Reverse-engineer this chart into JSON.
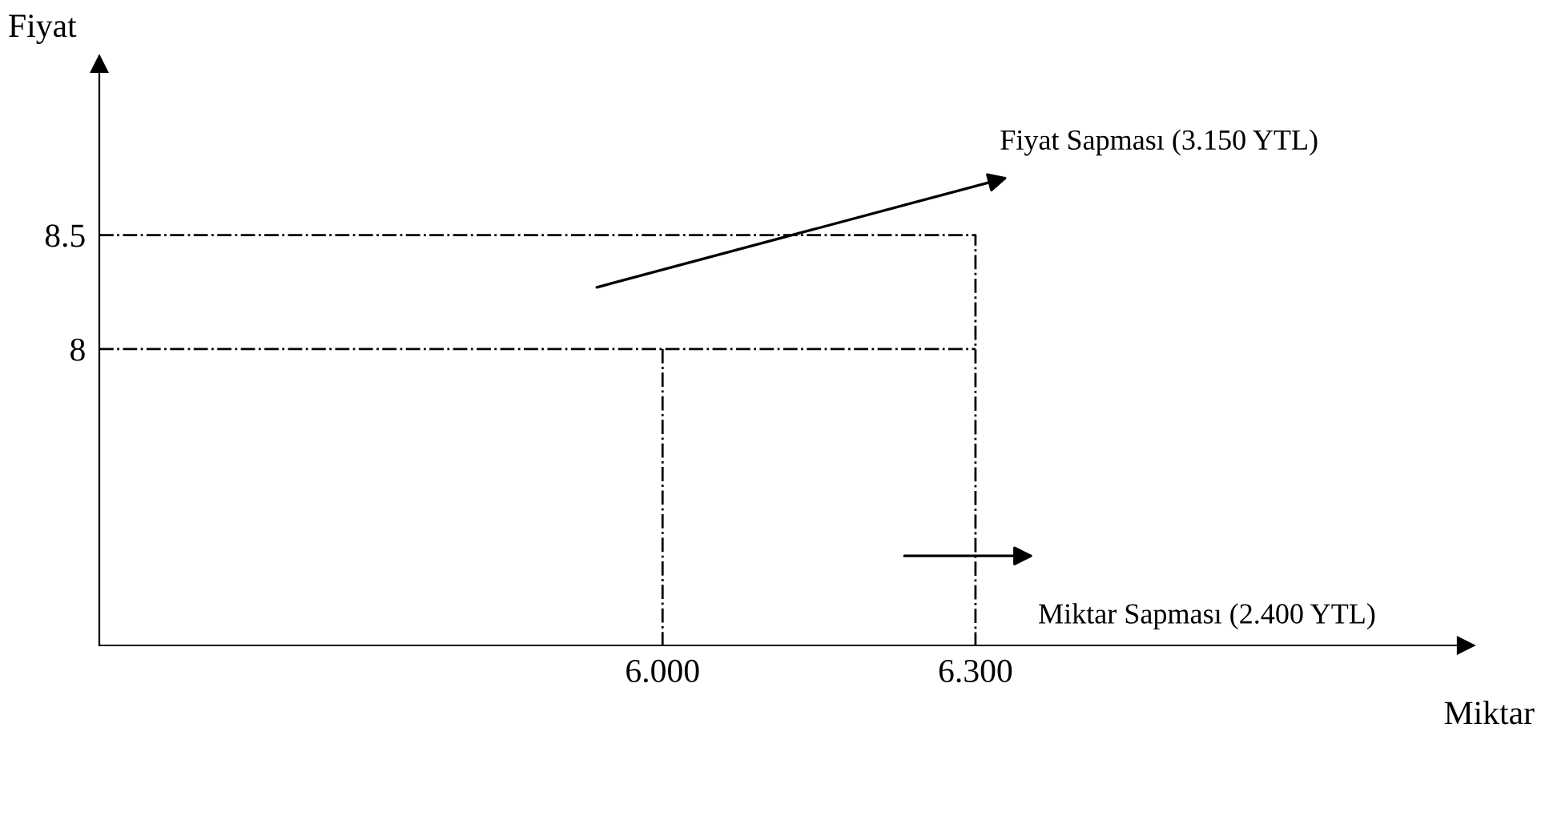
{
  "chart_data": {
    "type": "line",
    "xlabel": "Miktar",
    "ylabel": "Fiyat",
    "xlim": [
      5.46,
      6.77
    ],
    "ylim": [
      6.7,
      9.25
    ],
    "xticks": [
      {
        "value": 6.0,
        "label": "6.000"
      },
      {
        "value": 6.3,
        "label": "6.300"
      }
    ],
    "yticks": [
      8,
      8.5
    ],
    "line_style": "dashdot",
    "grid": false,
    "legend": false,
    "marker": "none",
    "series": [
      {
        "color": "#000000",
        "x": [
          5.46,
          6.3,
          6.3
        ],
        "values": [
          8.5,
          8.5,
          6.7
        ]
      },
      {
        "color": "#000000",
        "x": [
          5.46,
          6.3
        ],
        "values": [
          8,
          8
        ]
      },
      {
        "color": "#000000",
        "x": [
          6.0,
          6.0
        ],
        "values": [
          8,
          6.7
        ]
      }
    ],
    "annotations": [
      "Fiyat Sapması (3.150 YTL)",
      "Miktar Sapması (2.400 YTL)"
    ]
  }
}
